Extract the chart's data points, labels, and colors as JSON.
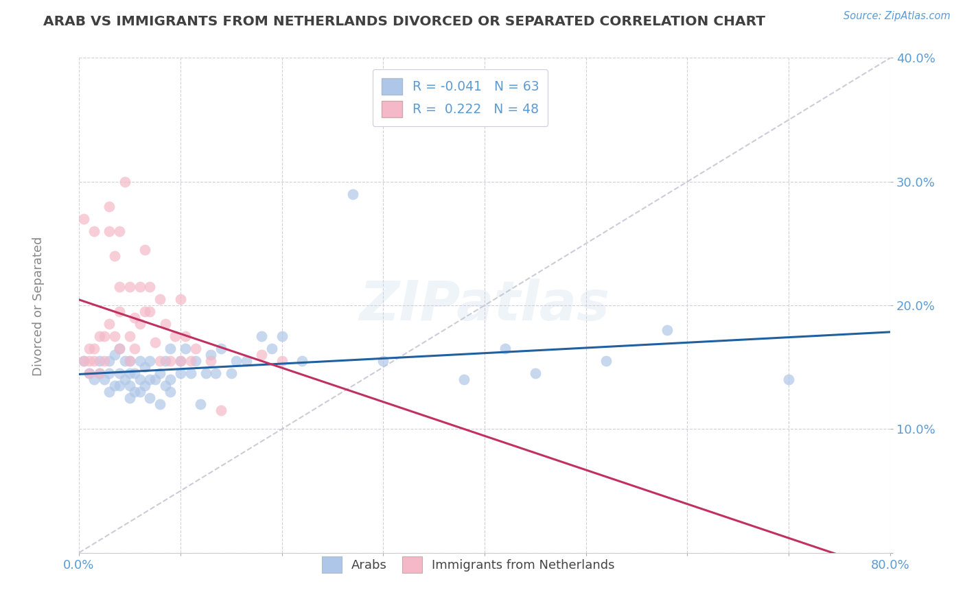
{
  "title": "ARAB VS IMMIGRANTS FROM NETHERLANDS DIVORCED OR SEPARATED CORRELATION CHART",
  "source_text": "Source: ZipAtlas.com",
  "ylabel": "Divorced or Separated",
  "xlabel": "",
  "xlim": [
    0.0,
    0.8
  ],
  "ylim": [
    0.0,
    0.4
  ],
  "xticks": [
    0.0,
    0.1,
    0.2,
    0.3,
    0.4,
    0.5,
    0.6,
    0.7,
    0.8
  ],
  "xticklabels": [
    "0.0%",
    "",
    "",
    "",
    "",
    "",
    "",
    "",
    "80.0%"
  ],
  "yticks": [
    0.0,
    0.1,
    0.2,
    0.3,
    0.4
  ],
  "yticklabels": [
    "",
    "10.0%",
    "20.0%",
    "30.0%",
    "40.0%"
  ],
  "legend1_label": "R = -0.041   N = 63",
  "legend2_label": "R =  0.222   N = 48",
  "legend_label_arab": "Arabs",
  "legend_label_imm": "Immigrants from Netherlands",
  "color_arab": "#aec6e8",
  "color_imm": "#f4b8c8",
  "line_color_arab": "#2060a0",
  "line_color_imm": "#c03060",
  "line_color_trend": "#c0c0d0",
  "background_color": "#ffffff",
  "grid_color": "#d0d0dc",
  "title_color": "#404040",
  "tick_color": "#5b9bd5",
  "watermark_text": "ZIPatlas",
  "arab_x": [
    0.005,
    0.01,
    0.015,
    0.02,
    0.02,
    0.025,
    0.03,
    0.03,
    0.03,
    0.035,
    0.035,
    0.04,
    0.04,
    0.04,
    0.045,
    0.045,
    0.05,
    0.05,
    0.05,
    0.05,
    0.055,
    0.055,
    0.06,
    0.06,
    0.06,
    0.065,
    0.065,
    0.07,
    0.07,
    0.07,
    0.075,
    0.08,
    0.08,
    0.085,
    0.085,
    0.09,
    0.09,
    0.09,
    0.1,
    0.1,
    0.105,
    0.11,
    0.115,
    0.12,
    0.125,
    0.13,
    0.135,
    0.14,
    0.15,
    0.155,
    0.165,
    0.18,
    0.19,
    0.2,
    0.22,
    0.27,
    0.3,
    0.38,
    0.42,
    0.45,
    0.52,
    0.58,
    0.7
  ],
  "arab_y": [
    0.155,
    0.145,
    0.14,
    0.155,
    0.145,
    0.14,
    0.13,
    0.145,
    0.155,
    0.135,
    0.16,
    0.135,
    0.145,
    0.165,
    0.14,
    0.155,
    0.125,
    0.135,
    0.145,
    0.155,
    0.13,
    0.145,
    0.13,
    0.14,
    0.155,
    0.135,
    0.15,
    0.125,
    0.14,
    0.155,
    0.14,
    0.12,
    0.145,
    0.135,
    0.155,
    0.13,
    0.14,
    0.165,
    0.145,
    0.155,
    0.165,
    0.145,
    0.155,
    0.12,
    0.145,
    0.16,
    0.145,
    0.165,
    0.145,
    0.155,
    0.155,
    0.175,
    0.165,
    0.175,
    0.155,
    0.29,
    0.155,
    0.14,
    0.165,
    0.145,
    0.155,
    0.18,
    0.14
  ],
  "imm_x": [
    0.005,
    0.005,
    0.01,
    0.01,
    0.01,
    0.015,
    0.015,
    0.015,
    0.02,
    0.02,
    0.025,
    0.025,
    0.03,
    0.03,
    0.03,
    0.035,
    0.035,
    0.04,
    0.04,
    0.04,
    0.04,
    0.045,
    0.05,
    0.05,
    0.05,
    0.055,
    0.055,
    0.06,
    0.06,
    0.065,
    0.065,
    0.07,
    0.07,
    0.075,
    0.08,
    0.08,
    0.085,
    0.09,
    0.095,
    0.1,
    0.1,
    0.105,
    0.11,
    0.115,
    0.13,
    0.14,
    0.18,
    0.2
  ],
  "imm_y": [
    0.155,
    0.27,
    0.145,
    0.155,
    0.165,
    0.155,
    0.165,
    0.26,
    0.145,
    0.175,
    0.155,
    0.175,
    0.185,
    0.26,
    0.28,
    0.175,
    0.24,
    0.165,
    0.195,
    0.215,
    0.26,
    0.3,
    0.155,
    0.175,
    0.215,
    0.165,
    0.19,
    0.185,
    0.215,
    0.195,
    0.245,
    0.195,
    0.215,
    0.17,
    0.155,
    0.205,
    0.185,
    0.155,
    0.175,
    0.155,
    0.205,
    0.175,
    0.155,
    0.165,
    0.155,
    0.115,
    0.16,
    0.155
  ]
}
